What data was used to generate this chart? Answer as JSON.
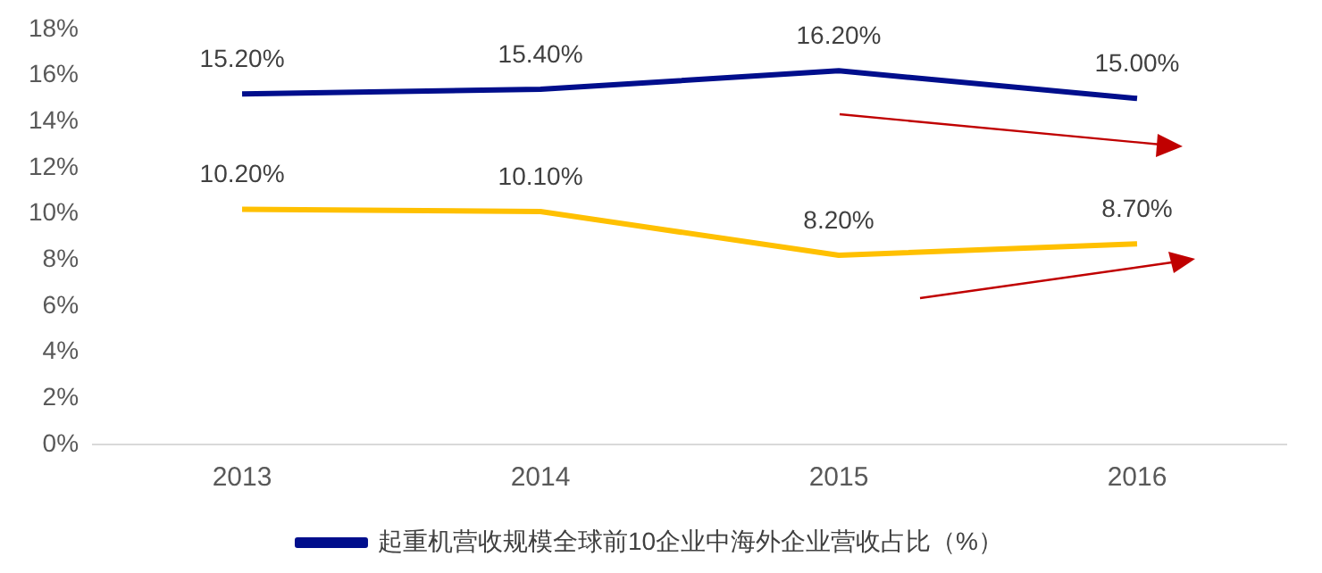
{
  "chart_data": {
    "type": "line",
    "categories": [
      "2013",
      "2014",
      "2015",
      "2016"
    ],
    "series": [
      {
        "name": "起重机营收规模全球前10企业中海外企业营收占比（%）",
        "color": "#000e8c",
        "values": [
          15.2,
          15.4,
          16.2,
          15.0
        ],
        "value_labels": [
          "15.20%",
          "15.40%",
          "16.20%",
          "15.00%"
        ]
      },
      {
        "color": "#ffc000",
        "values": [
          10.2,
          10.1,
          8.2,
          8.7
        ],
        "value_labels": [
          "10.20%",
          "10.10%",
          "8.20%",
          "8.70%"
        ]
      }
    ],
    "ylim": [
      0,
      18
    ],
    "yticks": [
      {
        "value": 0,
        "label": "0%"
      },
      {
        "value": 2,
        "label": "2%"
      },
      {
        "value": 4,
        "label": "4%"
      },
      {
        "value": 6,
        "label": "6%"
      },
      {
        "value": 8,
        "label": "8%"
      },
      {
        "value": 10,
        "label": "10%"
      },
      {
        "value": 12,
        "label": "12%"
      },
      {
        "value": 14,
        "label": "14%"
      },
      {
        "value": 16,
        "label": "16%"
      },
      {
        "value": 18,
        "label": "18%"
      }
    ],
    "grid": false,
    "legend": "bottom",
    "marker": "none",
    "line_style": "solid"
  }
}
